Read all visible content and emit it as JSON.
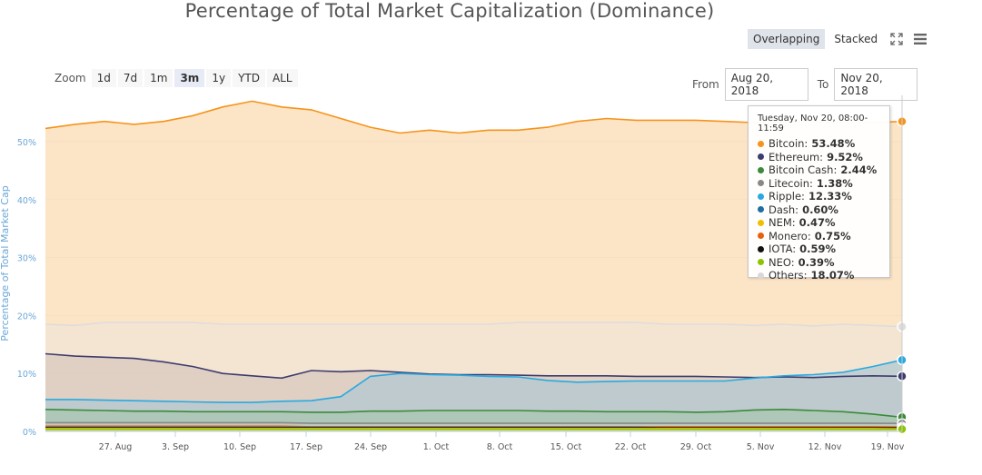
{
  "title": "Percentage of Total Market Capitalization (Dominance)",
  "mode": {
    "overlapping": "Overlapping",
    "stacked": "Stacked",
    "active": "Overlapping"
  },
  "icons": {
    "fullscreen": "fullscreen-icon",
    "menu": "hamburger-menu-icon"
  },
  "zoom": {
    "label": "Zoom",
    "options": [
      "1d",
      "7d",
      "1m",
      "3m",
      "1y",
      "YTD",
      "ALL"
    ],
    "active": "3m"
  },
  "range": {
    "from_label": "From",
    "from_value": "Aug 20, 2018",
    "to_label": "To",
    "to_value": "Nov 20, 2018"
  },
  "tooltip": {
    "header": "Tuesday, Nov 20, 08:00-11:59",
    "rows": [
      {
        "name": "Bitcoin",
        "value": "53.48%",
        "color": "#f7931a"
      },
      {
        "name": "Ethereum",
        "value": "9.52%",
        "color": "#3c3c6e"
      },
      {
        "name": "Bitcoin Cash",
        "value": "2.44%",
        "color": "#3a8a3a"
      },
      {
        "name": "Litecoin",
        "value": "1.38%",
        "color": "#888888"
      },
      {
        "name": "Ripple",
        "value": "12.33%",
        "color": "#27a9e1"
      },
      {
        "name": "Dash",
        "value": "0.60%",
        "color": "#1c6ea4"
      },
      {
        "name": "NEM",
        "value": "0.47%",
        "color": "#f0c000"
      },
      {
        "name": "Monero",
        "value": "0.75%",
        "color": "#e8600a"
      },
      {
        "name": "IOTA",
        "value": "0.59%",
        "color": "#111111"
      },
      {
        "name": "NEO",
        "value": "0.39%",
        "color": "#8cc400"
      },
      {
        "name": "Others",
        "value": "18.07%",
        "color": "#d8d8d8"
      }
    ]
  },
  "chart_data": {
    "type": "area",
    "title": "Percentage of Total Market Capitalization (Dominance)",
    "ylabel": "Percentage of Total Market Cap",
    "ylim": [
      0,
      58
    ],
    "yticks": [
      0,
      10,
      20,
      30,
      40,
      50
    ],
    "ytick_labels": [
      "0%",
      "10%",
      "20%",
      "30%",
      "40%",
      "50%"
    ],
    "xticks": [
      "27. Aug",
      "3. Sep",
      "10. Sep",
      "17. Sep",
      "24. Sep",
      "1. Oct",
      "8. Oct",
      "15. Oct",
      "22. Oct",
      "29. Oct",
      "5. Nov",
      "12. Nov",
      "19. Nov"
    ],
    "x": [
      "Aug 20",
      "Aug 24",
      "Aug 27",
      "Aug 31",
      "Sep 3",
      "Sep 7",
      "Sep 10",
      "Sep 12",
      "Sep 14",
      "Sep 17",
      "Sep 19",
      "Sep 21",
      "Sep 24",
      "Sep 28",
      "Oct 1",
      "Oct 4",
      "Oct 8",
      "Oct 11",
      "Oct 15",
      "Oct 18",
      "Oct 22",
      "Oct 25",
      "Oct 29",
      "Nov 1",
      "Nov 5",
      "Nov 8",
      "Nov 12",
      "Nov 15",
      "Nov 19",
      "Nov 20"
    ],
    "grid": true,
    "series": [
      {
        "name": "Bitcoin",
        "color": "#f7931a",
        "fill": "#fbdcb4",
        "values": [
          52.3,
          53.0,
          53.5,
          53.0,
          53.5,
          54.5,
          56.0,
          57.0,
          56.0,
          55.5,
          54.0,
          52.5,
          51.5,
          52.0,
          51.5,
          52.0,
          52.0,
          52.5,
          53.5,
          54.0,
          53.7,
          53.7,
          53.7,
          53.5,
          53.3,
          53.5,
          53.5,
          53.3,
          53.3,
          53.5
        ]
      },
      {
        "name": "Others",
        "color": "#dddddd",
        "fill": "#f1e4d6",
        "values": [
          18.5,
          18.3,
          18.8,
          18.8,
          18.8,
          18.8,
          18.5,
          18.5,
          18.5,
          18.5,
          18.5,
          18.5,
          18.5,
          18.5,
          18.5,
          18.5,
          18.8,
          18.8,
          18.8,
          18.8,
          18.8,
          18.5,
          18.5,
          18.5,
          18.3,
          18.5,
          18.2,
          18.5,
          18.3,
          18.07
        ]
      },
      {
        "name": "Ethereum",
        "color": "#3c3c6e",
        "fill": "#d9c7bd",
        "values": [
          13.4,
          13.0,
          12.8,
          12.6,
          12.0,
          11.2,
          10.0,
          9.6,
          9.2,
          10.5,
          10.3,
          10.5,
          10.2,
          9.9,
          9.8,
          9.8,
          9.7,
          9.6,
          9.6,
          9.6,
          9.5,
          9.5,
          9.5,
          9.4,
          9.3,
          9.4,
          9.3,
          9.5,
          9.6,
          9.52
        ]
      },
      {
        "name": "Ripple",
        "color": "#27a9e1",
        "fill": "#b3c8d0",
        "values": [
          5.5,
          5.5,
          5.4,
          5.3,
          5.2,
          5.1,
          5.0,
          5.0,
          5.2,
          5.3,
          6.0,
          9.5,
          10.0,
          9.8,
          9.7,
          9.5,
          9.4,
          8.8,
          8.5,
          8.6,
          8.7,
          8.7,
          8.7,
          8.7,
          9.2,
          9.6,
          9.8,
          10.2,
          11.2,
          12.33
        ]
      },
      {
        "name": "Bitcoin Cash",
        "color": "#3a8a3a",
        "fill": "#aac6b0",
        "values": [
          3.8,
          3.7,
          3.6,
          3.5,
          3.5,
          3.4,
          3.4,
          3.4,
          3.4,
          3.3,
          3.3,
          3.5,
          3.5,
          3.6,
          3.6,
          3.6,
          3.6,
          3.5,
          3.5,
          3.4,
          3.4,
          3.4,
          3.3,
          3.4,
          3.7,
          3.8,
          3.6,
          3.4,
          3.0,
          2.44
        ]
      },
      {
        "name": "Litecoin",
        "color": "#888888",
        "fill": "#c5c8c0",
        "values": [
          1.5,
          1.5,
          1.5,
          1.5,
          1.5,
          1.5,
          1.5,
          1.5,
          1.5,
          1.4,
          1.4,
          1.4,
          1.4,
          1.4,
          1.4,
          1.4,
          1.4,
          1.4,
          1.4,
          1.4,
          1.4,
          1.4,
          1.4,
          1.4,
          1.4,
          1.4,
          1.4,
          1.4,
          1.4,
          1.38
        ]
      },
      {
        "name": "Monero",
        "color": "#e8600a",
        "fill": "#d8c090",
        "values": [
          0.9,
          0.9,
          0.9,
          0.9,
          0.9,
          0.9,
          0.9,
          0.9,
          0.9,
          0.8,
          0.8,
          0.8,
          0.8,
          0.8,
          0.8,
          0.8,
          0.8,
          0.8,
          0.8,
          0.8,
          0.8,
          0.8,
          0.8,
          0.8,
          0.8,
          0.8,
          0.8,
          0.8,
          0.8,
          0.75
        ]
      },
      {
        "name": "Dash",
        "color": "#1c6ea4",
        "fill": "#b0c0c8",
        "values": [
          0.7,
          0.7,
          0.7,
          0.7,
          0.7,
          0.7,
          0.7,
          0.7,
          0.7,
          0.7,
          0.7,
          0.7,
          0.7,
          0.7,
          0.7,
          0.7,
          0.7,
          0.7,
          0.7,
          0.7,
          0.7,
          0.6,
          0.6,
          0.6,
          0.6,
          0.6,
          0.6,
          0.6,
          0.6,
          0.6
        ]
      },
      {
        "name": "IOTA",
        "color": "#111111",
        "fill": "#a0a8a0",
        "values": [
          0.6,
          0.6,
          0.6,
          0.6,
          0.6,
          0.6,
          0.6,
          0.6,
          0.6,
          0.6,
          0.6,
          0.6,
          0.6,
          0.6,
          0.6,
          0.6,
          0.6,
          0.6,
          0.6,
          0.6,
          0.6,
          0.6,
          0.6,
          0.6,
          0.6,
          0.6,
          0.6,
          0.6,
          0.6,
          0.59
        ]
      },
      {
        "name": "NEM",
        "color": "#f0c000",
        "fill": "#d8d090",
        "values": [
          0.5,
          0.5,
          0.5,
          0.5,
          0.5,
          0.5,
          0.5,
          0.5,
          0.5,
          0.5,
          0.5,
          0.5,
          0.5,
          0.5,
          0.5,
          0.5,
          0.5,
          0.5,
          0.5,
          0.5,
          0.5,
          0.5,
          0.5,
          0.5,
          0.5,
          0.5,
          0.5,
          0.5,
          0.5,
          0.47
        ]
      },
      {
        "name": "NEO",
        "color": "#8cc400",
        "fill": "#c8d890",
        "values": [
          0.4,
          0.4,
          0.4,
          0.4,
          0.4,
          0.4,
          0.4,
          0.4,
          0.4,
          0.4,
          0.4,
          0.4,
          0.4,
          0.4,
          0.4,
          0.4,
          0.4,
          0.4,
          0.4,
          0.4,
          0.4,
          0.4,
          0.4,
          0.4,
          0.4,
          0.4,
          0.4,
          0.4,
          0.4,
          0.39
        ]
      }
    ]
  }
}
